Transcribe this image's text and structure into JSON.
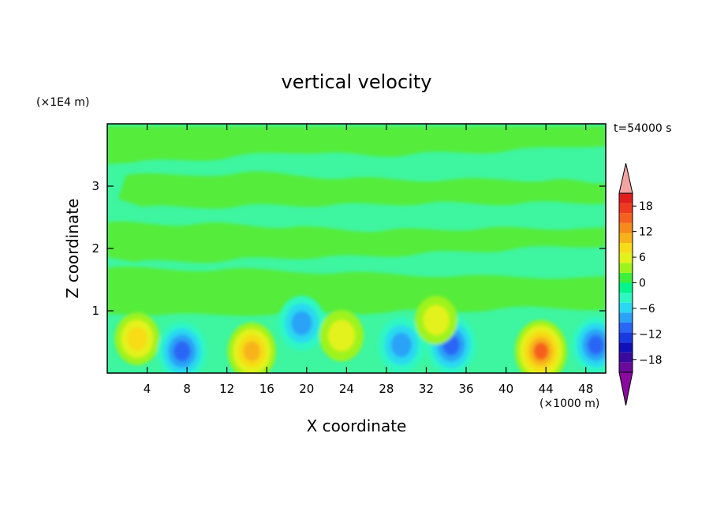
{
  "chart_data": {
    "type": "heatmap",
    "title": "vertical velocity",
    "time_label": "t=54000 s",
    "xlabel": "X coordinate",
    "ylabel": "Z coordinate",
    "x_unit": "(×1000 m)",
    "y_unit": "(×1E4 m)",
    "xlim": [
      0,
      50
    ],
    "ylim": [
      0,
      4
    ],
    "x_ticks": [
      4,
      8,
      12,
      16,
      20,
      24,
      28,
      32,
      36,
      40,
      44,
      48
    ],
    "y_ticks": [
      1,
      2,
      3
    ],
    "colorbar": {
      "ticks": [
        18,
        12,
        6,
        0,
        -6,
        -12,
        -18
      ],
      "range": [
        -21,
        21
      ],
      "colors": [
        "#6a0a9a",
        "#3a0a9e",
        "#1010b8",
        "#1a3ae0",
        "#2a66f5",
        "#2aa2f7",
        "#2ad9f0",
        "#2ef7c2",
        "#00f58a",
        "#3cf03c",
        "#9ef31a",
        "#e3f21a",
        "#f7dc18",
        "#f7b21a",
        "#f78a1a",
        "#f5601e",
        "#ee3a1e",
        "#e01e1e"
      ],
      "over_color": "#f2a3a3",
      "under_color": "#8a0aa0"
    },
    "cells": [
      {
        "x": 3,
        "z": 0.55,
        "value": 8
      },
      {
        "x": 7.5,
        "z": 0.35,
        "value": -13
      },
      {
        "x": 14.5,
        "z": 0.35,
        "value": 12
      },
      {
        "x": 19.5,
        "z": 0.8,
        "value": -10
      },
      {
        "x": 23.5,
        "z": 0.6,
        "value": 7
      },
      {
        "x": 29.5,
        "z": 0.45,
        "value": -10
      },
      {
        "x": 34.5,
        "z": 0.45,
        "value": -13
      },
      {
        "x": 33,
        "z": 0.85,
        "value": 5
      },
      {
        "x": 43.5,
        "z": 0.35,
        "value": 16
      },
      {
        "x": 49,
        "z": 0.45,
        "value": -11
      }
    ]
  }
}
